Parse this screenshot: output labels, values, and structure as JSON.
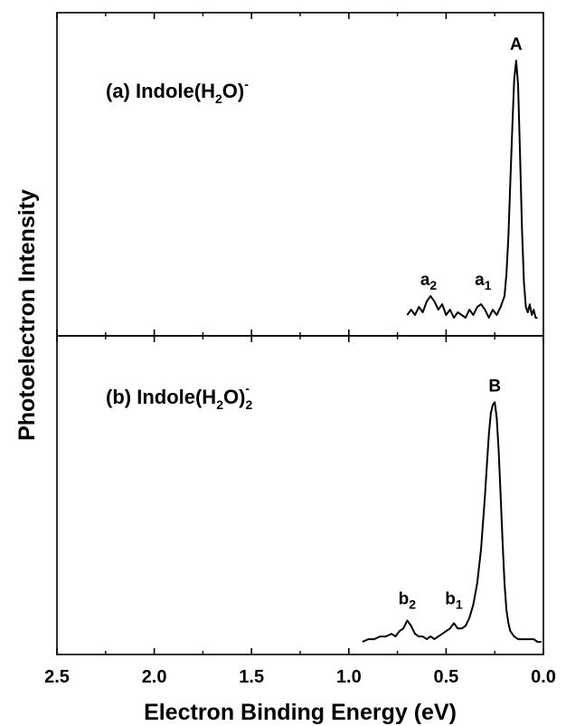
{
  "chart_data": {
    "type": "line",
    "xlabel": "Electron Binding Energy (eV)",
    "ylabel": "Photoelectron Intensity",
    "xlim": [
      2.5,
      0.0
    ],
    "x_reversed": true,
    "x_ticks": [
      2.5,
      2.0,
      1.5,
      1.0,
      0.5,
      0.0
    ],
    "x_tick_labels": [
      "2.5",
      "2.0",
      "1.5",
      "1.0",
      "0.5",
      "0.0"
    ],
    "grid": false,
    "panels": [
      {
        "label_main": "(a) Indole(H",
        "label_sub": "2",
        "label_tail": "O)",
        "label_sup": "-",
        "label_sub2": "",
        "ylim": [
          0,
          1
        ],
        "peaks": [
          {
            "name": "A",
            "x": 0.14,
            "y": 0.97
          },
          {
            "name": "a",
            "sub": "1",
            "x": 0.31,
            "y": 0.1
          },
          {
            "name": "a",
            "sub": "2",
            "x": 0.59,
            "y": 0.1
          }
        ],
        "series": [
          {
            "x": [
              0.7,
              0.68,
              0.66,
              0.64,
              0.62,
              0.6,
              0.58,
              0.56,
              0.54,
              0.52,
              0.5,
              0.48,
              0.46,
              0.44,
              0.42,
              0.4,
              0.38,
              0.36,
              0.34,
              0.32,
              0.3,
              0.28,
              0.26,
              0.24,
              0.22,
              0.2,
              0.19,
              0.18,
              0.17,
              0.16,
              0.15,
              0.14,
              0.13,
              0.12,
              0.11,
              0.1,
              0.09,
              0.08,
              0.07,
              0.06,
              0.05,
              0.04,
              0.03
            ],
            "y": [
              0.03,
              0.05,
              0.03,
              0.06,
              0.04,
              0.08,
              0.1,
              0.08,
              0.05,
              0.07,
              0.03,
              0.05,
              0.02,
              0.04,
              0.03,
              0.02,
              0.05,
              0.03,
              0.06,
              0.07,
              0.05,
              0.02,
              0.05,
              0.03,
              0.06,
              0.1,
              0.18,
              0.32,
              0.52,
              0.72,
              0.9,
              0.97,
              0.88,
              0.62,
              0.35,
              0.15,
              0.06,
              0.04,
              0.07,
              0.03,
              0.05,
              0.02,
              0.02
            ]
          }
        ]
      },
      {
        "label_main": "(b) Indole(H",
        "label_sub": "2",
        "label_tail": "O)",
        "label_sup": "-",
        "label_sub2": "2",
        "ylim": [
          0,
          1
        ],
        "peaks": [
          {
            "name": "B",
            "x": 0.25,
            "y": 0.9
          },
          {
            "name": "b",
            "sub": "1",
            "x": 0.46,
            "y": 0.1
          },
          {
            "name": "b",
            "sub": "2",
            "x": 0.7,
            "y": 0.1
          }
        ],
        "series": [
          {
            "x": [
              0.93,
              0.9,
              0.87,
              0.84,
              0.81,
              0.78,
              0.76,
              0.74,
              0.72,
              0.7,
              0.68,
              0.66,
              0.64,
              0.62,
              0.6,
              0.58,
              0.56,
              0.54,
              0.52,
              0.5,
              0.48,
              0.46,
              0.44,
              0.42,
              0.4,
              0.38,
              0.36,
              0.34,
              0.32,
              0.3,
              0.29,
              0.28,
              0.27,
              0.26,
              0.25,
              0.24,
              0.23,
              0.22,
              0.21,
              0.2,
              0.19,
              0.18,
              0.17,
              0.15,
              0.13,
              0.11,
              0.09,
              0.07,
              0.05,
              0.03,
              0.01
            ],
            "y": [
              0.0,
              0.01,
              0.01,
              0.02,
              0.02,
              0.03,
              0.02,
              0.04,
              0.05,
              0.08,
              0.06,
              0.03,
              0.02,
              0.02,
              0.01,
              0.02,
              0.01,
              0.02,
              0.03,
              0.04,
              0.05,
              0.07,
              0.05,
              0.05,
              0.06,
              0.09,
              0.14,
              0.22,
              0.35,
              0.55,
              0.67,
              0.78,
              0.86,
              0.89,
              0.9,
              0.84,
              0.72,
              0.55,
              0.38,
              0.22,
              0.12,
              0.07,
              0.04,
              0.02,
              0.01,
              0.01,
              0.01,
              0.01,
              0.01,
              0.0,
              0.0
            ]
          }
        ]
      }
    ]
  }
}
